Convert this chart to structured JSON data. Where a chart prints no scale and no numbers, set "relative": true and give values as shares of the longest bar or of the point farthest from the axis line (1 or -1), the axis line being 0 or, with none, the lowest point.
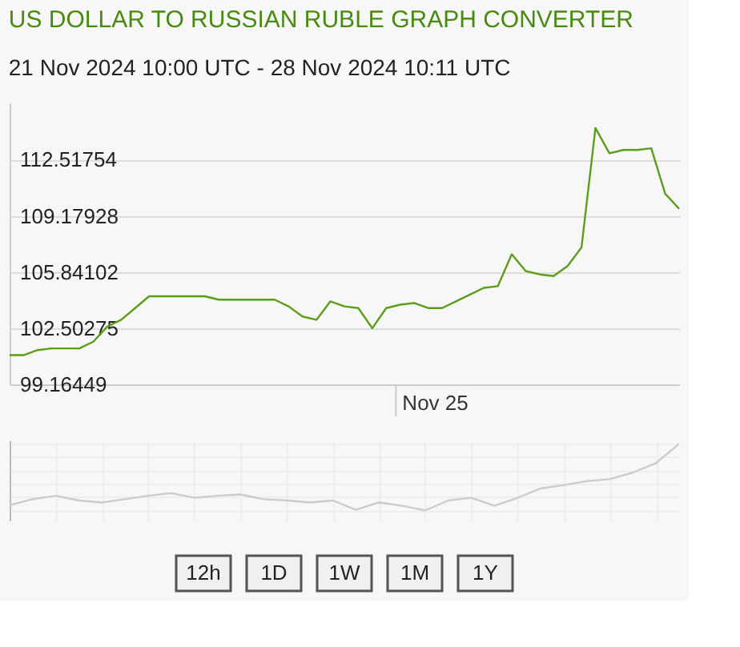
{
  "chart_data": [
    {
      "type": "line",
      "title": "US DOLLAR TO RUSSIAN RUBLE GRAPH CONVERTER",
      "subtitle": "21 Nov 2024 10:00 UTC - 28 Nov 2024 10:11 UTC",
      "categories": [
        null,
        null,
        null,
        null,
        null,
        null,
        null,
        null,
        null,
        null,
        null,
        null,
        null,
        null,
        null,
        null,
        null,
        null,
        null,
        null,
        null,
        null,
        null,
        null,
        null,
        null,
        null,
        null,
        null,
        null,
        null,
        null,
        null,
        null,
        null,
        null,
        null,
        null,
        null,
        null,
        null,
        null,
        null,
        null,
        null,
        null,
        null,
        null,
        null
      ],
      "series": [
        {
          "color": "#5a9e1a",
          "values": [
            100.9,
            100.9,
            101.2,
            101.3,
            101.3,
            101.3,
            101.7,
            102.6,
            103.0,
            103.7,
            104.4,
            104.4,
            104.4,
            104.4,
            104.4,
            104.2,
            104.2,
            104.2,
            104.2,
            104.2,
            103.8,
            103.2,
            103.0,
            104.1,
            103.8,
            103.7,
            102.5,
            103.7,
            103.9,
            104.0,
            103.7,
            103.7,
            104.1,
            104.5,
            104.9,
            105.0,
            106.9,
            105.9,
            105.7,
            105.6,
            106.2,
            107.3,
            114.4,
            112.9,
            113.1,
            113.1,
            113.2,
            110.5,
            109.6
          ]
        }
      ],
      "ylim": [
        99.16449,
        115.92
      ],
      "yticks": [
        99.16449,
        102.50275,
        105.84102,
        109.17928,
        112.51754
      ],
      "annotations": [
        "Nov 25"
      ],
      "grid": "y",
      "tick_labels": "y"
    },
    {
      "type": "line",
      "relative": true,
      "categories": [
        null,
        null,
        null,
        null,
        null,
        null,
        null,
        null,
        null,
        null,
        null,
        null,
        null,
        null,
        null,
        null,
        null,
        null,
        null,
        null,
        null,
        null,
        null,
        null,
        null,
        null,
        null,
        null,
        null,
        null
      ],
      "series": [
        {
          "color": "#cccccc",
          "values": [
            0.08,
            0.17,
            0.22,
            0.15,
            0.12,
            0.17,
            0.22,
            0.26,
            0.19,
            0.22,
            0.24,
            0.17,
            0.15,
            0.12,
            0.15,
            0.01,
            0.12,
            0.07,
            0,
            0.15,
            0.19,
            0.07,
            0.19,
            0.33,
            0.38,
            0.44,
            0.47,
            0.57,
            0.71,
            1.0
          ]
        }
      ],
      "annotations": [
        "12h",
        "1D",
        "1W",
        "1M",
        "1Y"
      ],
      "grid": true,
      "tick_labels": false
    }
  ]
}
